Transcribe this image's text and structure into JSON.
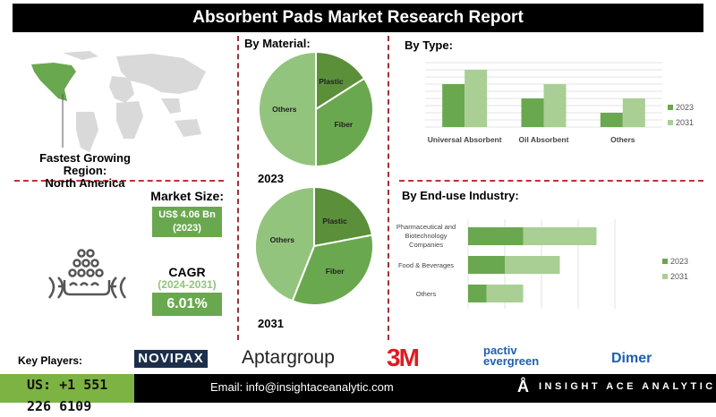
{
  "title": "Absorbent Pads Market Research Report",
  "region": {
    "label": "Fastest Growing Region:",
    "value": "North America",
    "highlight_color": "#6aa84f"
  },
  "market_size": {
    "label": "Market Size:",
    "value": "US$ 4.06 Bn",
    "year": "(2023)"
  },
  "cagr": {
    "label": "CAGR",
    "period": "(2024-2031)",
    "value": "6.01%"
  },
  "material": {
    "heading": "By  Material:"
  },
  "type": {
    "heading": "By  Type:"
  },
  "enduse": {
    "heading": "By End-use Industry:"
  },
  "colors": {
    "dark": "#5b8f3a",
    "mid": "#6aa84f",
    "light": "#a9cf94",
    "others_pie": "#93c47d",
    "accent_dash": "#c0303a"
  },
  "chart_data": [
    {
      "type": "pie",
      "title": "2023",
      "categories": [
        "Plastic",
        "Fiber",
        "Others"
      ],
      "values": [
        16,
        34,
        50
      ]
    },
    {
      "type": "pie",
      "title": "2031",
      "categories": [
        "Plastic",
        "Fiber",
        "Others"
      ],
      "values": [
        22,
        34,
        44
      ]
    },
    {
      "type": "bar",
      "categories": [
        "Universal Absorbent",
        "Oil Absorbent",
        "Others"
      ],
      "series": [
        {
          "name": "2023",
          "values": [
            6,
            4,
            2
          ]
        },
        {
          "name": "2031",
          "values": [
            8,
            6,
            4
          ]
        }
      ],
      "ylim": [
        0,
        9
      ],
      "grid": true,
      "legend": "right"
    },
    {
      "type": "bar",
      "orientation": "horizontal",
      "stacked": true,
      "categories": [
        "Pharmaceutical and Biotechnology Companies",
        "Food & Beverages",
        "Others"
      ],
      "series": [
        {
          "name": "2023",
          "values": [
            1.5,
            1.0,
            0.5
          ]
        },
        {
          "name": "2031",
          "values": [
            2.0,
            1.5,
            1.0
          ]
        }
      ],
      "xlim": [
        0,
        4
      ],
      "grid": true,
      "legend": "right"
    }
  ],
  "footer": {
    "key_players_label": "Key Players:",
    "players": [
      "NOVIPAX",
      "Aptargroup",
      "3M",
      "pactiv evergreen",
      "Dimer"
    ],
    "phone": "US: +1 551 226 6109",
    "email": "Email: info@insightaceanalytic.com",
    "brand": "INSIGHT ACE ANALYTIC"
  }
}
